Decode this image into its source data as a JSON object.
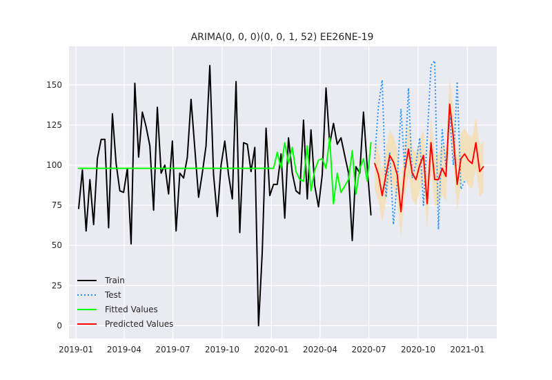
{
  "chart_data": {
    "type": "line",
    "title": "ARIMA(0, 0, 0)(0, 0, 1, 52) EE26NE-19",
    "xlabel": "",
    "ylabel": "",
    "x_tick_labels": [
      "2019-01",
      "2019-04",
      "2019-07",
      "2019-10",
      "2020-01",
      "2020-04",
      "2020-07",
      "2020-10",
      "2021-01"
    ],
    "y_ticks": [
      0,
      25,
      50,
      75,
      100,
      125,
      150
    ],
    "xlim": [
      "2018-12-19",
      "2021-02-25"
    ],
    "ylim": [
      -8,
      174
    ],
    "grid": true,
    "legend_position": "lower-left",
    "colors": {
      "background": "#eaeaf2",
      "grid": "#ffffff",
      "train": "#000000",
      "test": "#1e90ff",
      "fitted": "#00ff00",
      "predicted": "#ff0000",
      "interval": "#f5deb3"
    },
    "series": [
      {
        "name": "Train",
        "style": "solid",
        "x": [
          "2019-01-06",
          "2019-01-13",
          "2019-01-20",
          "2019-01-27",
          "2019-02-03",
          "2019-02-10",
          "2019-02-17",
          "2019-02-24",
          "2019-03-03",
          "2019-03-10",
          "2019-03-17",
          "2019-03-24",
          "2019-03-31",
          "2019-04-07",
          "2019-04-14",
          "2019-04-21",
          "2019-04-28",
          "2019-05-05",
          "2019-05-12",
          "2019-05-19",
          "2019-05-26",
          "2019-06-02",
          "2019-06-09",
          "2019-06-16",
          "2019-06-23",
          "2019-06-30",
          "2019-07-07",
          "2019-07-14",
          "2019-07-21",
          "2019-07-28",
          "2019-08-04",
          "2019-08-11",
          "2019-08-18",
          "2019-08-25",
          "2019-09-01",
          "2019-09-08",
          "2019-09-15",
          "2019-09-22",
          "2019-09-29",
          "2019-10-06",
          "2019-10-13",
          "2019-10-20",
          "2019-10-27",
          "2019-11-03",
          "2019-11-10",
          "2019-11-17",
          "2019-11-24",
          "2019-12-01",
          "2019-12-08",
          "2019-12-15",
          "2019-12-22",
          "2019-12-29",
          "2020-01-05",
          "2020-01-12",
          "2020-01-19",
          "2020-01-26",
          "2020-02-02",
          "2020-02-09",
          "2020-02-16",
          "2020-02-23",
          "2020-03-01",
          "2020-03-08",
          "2020-03-15",
          "2020-03-22",
          "2020-03-29",
          "2020-04-05",
          "2020-04-12",
          "2020-04-19",
          "2020-04-26",
          "2020-05-03",
          "2020-05-10",
          "2020-05-17",
          "2020-05-24",
          "2020-05-31",
          "2020-06-07",
          "2020-06-14",
          "2020-06-21",
          "2020-06-28",
          "2020-07-05"
        ],
        "values": [
          73,
          97,
          59,
          91,
          63,
          104,
          116,
          116,
          61,
          132,
          101,
          84,
          83,
          98,
          51,
          151,
          105,
          133,
          124,
          112,
          72,
          136,
          95,
          100,
          82,
          115,
          59,
          95,
          92,
          105,
          141,
          110,
          80,
          95,
          112,
          162,
          94,
          68,
          100,
          115,
          94,
          79,
          152,
          58,
          114,
          113,
          96,
          111,
          0,
          46,
          123,
          81,
          88,
          88,
          107,
          67,
          117,
          95,
          84,
          82,
          128,
          79,
          122,
          87,
          74,
          94,
          148,
          113,
          126,
          113,
          117,
          106,
          95,
          53,
          99,
          95,
          133,
          99,
          69
        ]
      },
      {
        "name": "Test",
        "style": "dotted",
        "x": [
          "2020-07-12",
          "2020-07-19",
          "2020-07-26",
          "2020-08-02",
          "2020-08-09",
          "2020-08-16",
          "2020-08-23",
          "2020-08-30",
          "2020-09-06",
          "2020-09-13",
          "2020-09-20",
          "2020-09-27",
          "2020-10-04",
          "2020-10-11",
          "2020-10-18",
          "2020-10-25",
          "2020-11-01",
          "2020-11-08",
          "2020-11-15",
          "2020-11-22",
          "2020-11-29",
          "2020-12-06",
          "2020-12-13",
          "2020-12-20",
          "2020-12-27"
        ],
        "values": [
          104,
          137,
          153,
          80,
          108,
          63,
          90,
          135,
          98,
          148,
          92,
          101,
          117,
          75,
          116,
          162,
          165,
          60,
          122,
          99,
          130,
          100,
          152,
          85,
          90
        ]
      },
      {
        "name": "Fitted Values",
        "style": "solid",
        "x": [
          "2019-01-06",
          "2019-12-29",
          "2020-01-05",
          "2020-01-12",
          "2020-01-19",
          "2020-01-26",
          "2020-02-02",
          "2020-02-09",
          "2020-02-16",
          "2020-02-23",
          "2020-03-01",
          "2020-03-08",
          "2020-03-15",
          "2020-03-22",
          "2020-03-29",
          "2020-04-05",
          "2020-04-12",
          "2020-04-19",
          "2020-04-26",
          "2020-05-03",
          "2020-05-10",
          "2020-05-17",
          "2020-05-24",
          "2020-05-31",
          "2020-06-07",
          "2020-06-14",
          "2020-06-21",
          "2020-06-28",
          "2020-07-05"
        ],
        "values": [
          98,
          98,
          98,
          108,
          98,
          114,
          101,
          111,
          96,
          91,
          90,
          112,
          84,
          97,
          103,
          104,
          98,
          117,
          76,
          95,
          83,
          87,
          91,
          109,
          82,
          98,
          104,
          90,
          114
        ]
      },
      {
        "name": "Predicted Values",
        "style": "solid",
        "x": [
          "2020-07-12",
          "2020-07-19",
          "2020-07-26",
          "2020-08-02",
          "2020-08-09",
          "2020-08-16",
          "2020-08-23",
          "2020-08-30",
          "2020-09-06",
          "2020-09-13",
          "2020-09-20",
          "2020-09-27",
          "2020-10-04",
          "2020-10-11",
          "2020-10-18",
          "2020-10-25",
          "2020-11-01",
          "2020-11-08",
          "2020-11-15",
          "2020-11-22",
          "2020-11-29",
          "2020-12-06",
          "2020-12-13",
          "2020-12-20",
          "2020-12-27",
          "2021-01-03",
          "2021-01-10",
          "2021-01-17",
          "2021-01-24",
          "2021-01-31"
        ],
        "values": [
          101,
          94,
          81,
          94,
          106,
          102,
          94,
          71,
          96,
          110,
          95,
          91,
          100,
          106,
          76,
          114,
          91,
          91,
          98,
          93,
          138,
          117,
          88,
          104,
          107,
          103,
          101,
          114,
          96,
          99
        ]
      }
    ],
    "interval": {
      "name": "",
      "x": [
        "2020-07-12",
        "2020-07-19",
        "2020-07-26",
        "2020-08-02",
        "2020-08-09",
        "2020-08-16",
        "2020-08-23",
        "2020-08-30",
        "2020-09-06",
        "2020-09-13",
        "2020-09-20",
        "2020-09-27",
        "2020-10-04",
        "2020-10-11",
        "2020-10-18",
        "2020-10-25",
        "2020-11-01",
        "2020-11-08",
        "2020-11-15",
        "2020-11-22",
        "2020-11-29",
        "2020-12-06",
        "2020-12-13",
        "2020-12-20",
        "2020-12-27",
        "2021-01-03",
        "2021-01-10",
        "2021-01-17",
        "2021-01-24",
        "2021-01-31"
      ],
      "lower": [
        85,
        78,
        64,
        78,
        89,
        86,
        78,
        55,
        80,
        94,
        79,
        75,
        84,
        90,
        60,
        98,
        75,
        75,
        82,
        77,
        121,
        101,
        72,
        88,
        91,
        87,
        85,
        98,
        80,
        83
      ],
      "upper": [
        117,
        110,
        97,
        110,
        122,
        118,
        110,
        87,
        112,
        126,
        111,
        107,
        116,
        122,
        92,
        130,
        107,
        107,
        114,
        109,
        155,
        133,
        104,
        120,
        123,
        119,
        117,
        130,
        112,
        115
      ]
    }
  }
}
